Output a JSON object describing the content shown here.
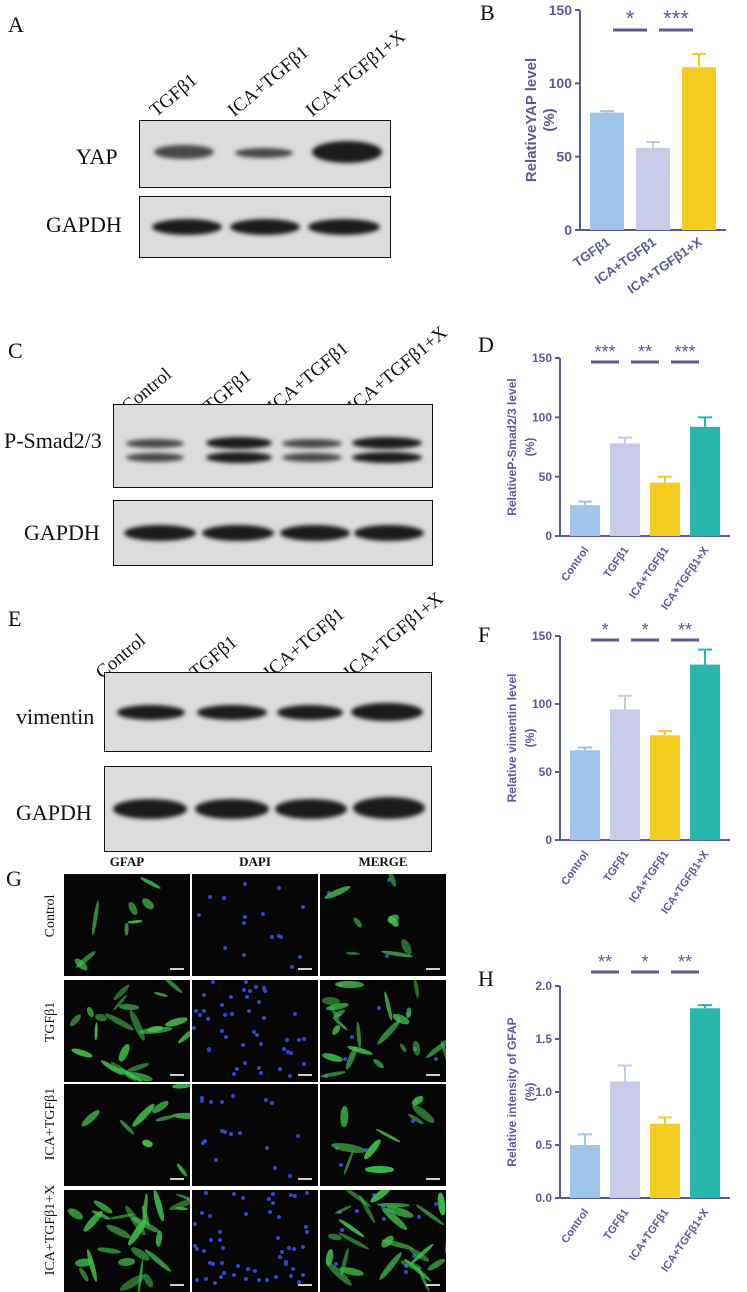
{
  "panels": {
    "A": {
      "letter": "A",
      "lanes": [
        "TGFβ1",
        "ICA+TGFβ1",
        "ICA+TGFβ1+X"
      ],
      "rows": [
        "YAP",
        "GAPDH"
      ]
    },
    "C": {
      "letter": "C",
      "lanes": [
        "Control",
        "TGFβ1",
        "ICA+TGFβ1",
        "ICA+TGFβ1+X"
      ],
      "rows": [
        "P-Smad2/3",
        "GAPDH"
      ]
    },
    "E": {
      "letter": "E",
      "lanes": [
        "Control",
        "TGFβ1",
        "ICA+TGFβ1",
        "ICA+TGFβ1+X"
      ],
      "rows": [
        "vimentin",
        "GAPDH"
      ]
    },
    "G": {
      "letter": "G",
      "columns": [
        "GFAP",
        "DAPI",
        "MERGE"
      ],
      "rows": [
        "Control",
        "TGFβ1",
        "ICA+TGFβ1",
        "ICA+TGFβ1+X"
      ]
    }
  },
  "colors": {
    "control": "#9fc5ea",
    "tgfb1": "#c9c9e8",
    "ica_tgfb1": "#f4cd1e",
    "ica_tgfb1_x": "#29b7ad",
    "axis": "#5a5a96",
    "gfap": "#3fbf4a",
    "dapi": "#2f47d6"
  },
  "chart_data": [
    {
      "letter": "B",
      "type": "bar",
      "categories": [
        "TGFβ1",
        "ICA+TGFβ1",
        "ICA+TGFβ1+X"
      ],
      "values": [
        80,
        56,
        111
      ],
      "errors": [
        1,
        4,
        9
      ],
      "bar_colors": [
        "#9fc5ea",
        "#c9c9e8",
        "#f4cd1e"
      ],
      "ylabel": [
        "RelativeYAP level",
        "(%)"
      ],
      "ylim": [
        0,
        150
      ],
      "yticks": [
        "0",
        "50",
        "100",
        "150"
      ],
      "significance": [
        {
          "from": 0,
          "to": 1,
          "label": "*"
        },
        {
          "from": 1,
          "to": 2,
          "label": "***"
        }
      ]
    },
    {
      "letter": "D",
      "type": "bar",
      "categories": [
        "Control",
        "TGFβ1",
        "ICA+TGFβ1",
        "ICA+TGFβ1+X"
      ],
      "values": [
        26,
        78,
        45,
        92
      ],
      "errors": [
        3,
        5,
        5,
        8
      ],
      "bar_colors": [
        "#9fc5ea",
        "#c9c9e8",
        "#f4cd1e",
        "#29b7ad"
      ],
      "ylabel": [
        "RelativeP-Smad2/3 level",
        "(%)"
      ],
      "ylim": [
        0,
        150
      ],
      "yticks": [
        "0",
        "50",
        "100",
        "150"
      ],
      "significance": [
        {
          "from": 0,
          "to": 1,
          "label": "***"
        },
        {
          "from": 1,
          "to": 2,
          "label": "**"
        },
        {
          "from": 2,
          "to": 3,
          "label": "***"
        }
      ]
    },
    {
      "letter": "F",
      "type": "bar",
      "categories": [
        "Control",
        "TGFβ1",
        "ICA+TGFβ1",
        "ICA+TGFβ1+X"
      ],
      "values": [
        66,
        96,
        77,
        129
      ],
      "errors": [
        2,
        10,
        3,
        11
      ],
      "bar_colors": [
        "#9fc5ea",
        "#c9c9e8",
        "#f4cd1e",
        "#29b7ad"
      ],
      "ylabel": [
        "Relative vimentin level",
        "(%)"
      ],
      "ylim": [
        0,
        150
      ],
      "yticks": [
        "0",
        "50",
        "100",
        "150"
      ],
      "significance": [
        {
          "from": 0,
          "to": 1,
          "label": "*"
        },
        {
          "from": 1,
          "to": 2,
          "label": "*"
        },
        {
          "from": 2,
          "to": 3,
          "label": "**"
        }
      ]
    },
    {
      "letter": "H",
      "type": "bar",
      "categories": [
        "Control",
        "TGFβ1",
        "ICA+TGFβ1",
        "ICA+TGFβ1+X"
      ],
      "values": [
        0.5,
        1.1,
        0.7,
        1.79
      ],
      "errors": [
        0.1,
        0.15,
        0.06,
        0.03
      ],
      "bar_colors": [
        "#9fc5ea",
        "#c9c9e8",
        "#f4cd1e",
        "#29b7ad"
      ],
      "ylabel": [
        "Relative intensity of GFAP",
        "(%)"
      ],
      "ylim": [
        0,
        2.0
      ],
      "yticks": [
        "0.0",
        "0.5",
        "1.0",
        "1.5",
        "2.0"
      ],
      "significance": [
        {
          "from": 0,
          "to": 1,
          "label": "**"
        },
        {
          "from": 1,
          "to": 2,
          "label": "*"
        },
        {
          "from": 2,
          "to": 3,
          "label": "**"
        }
      ]
    }
  ]
}
